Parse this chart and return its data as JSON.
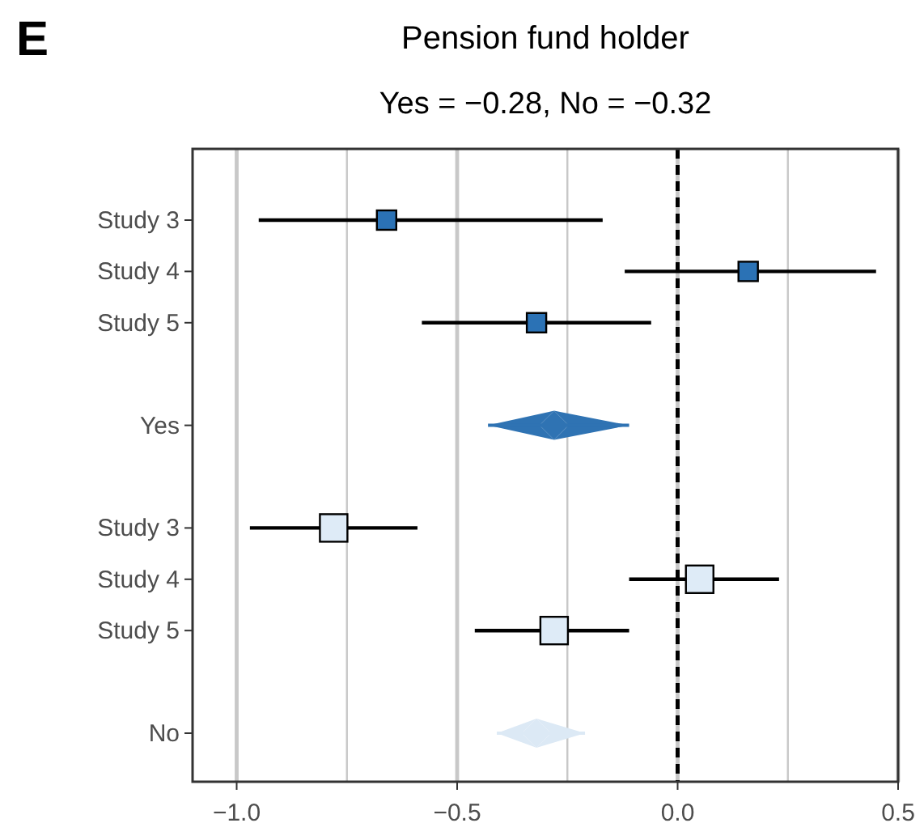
{
  "chart_data": {
    "type": "scatter",
    "orientation": "horizontal",
    "title": "Pension fund holder",
    "subtitle": "Yes = −0.28, No = −0.32",
    "annotations": [
      "E"
    ],
    "categories": [
      "Study 3",
      "Study 4",
      "Study 5",
      null,
      "Yes",
      null,
      "Study 3",
      "Study 4",
      "Study 5",
      null,
      "No"
    ],
    "series": [
      {
        "color": "#2b72b5",
        "marker": "square",
        "values": [
          -0.66,
          0.16,
          -0.32,
          null,
          null,
          null,
          null,
          null,
          null,
          null,
          null
        ],
        "errors": [
          [
            -0.95,
            -0.17
          ],
          [
            -0.12,
            0.45
          ],
          [
            -0.58,
            -0.06
          ],
          null,
          null,
          null,
          null,
          null,
          null,
          null,
          null
        ]
      },
      {
        "color": "#2f73b3",
        "marker": "diamond",
        "values": [
          null,
          null,
          null,
          null,
          -0.28,
          null,
          null,
          null,
          null,
          null,
          null
        ],
        "errors": [
          null,
          null,
          null,
          null,
          [
            -0.43,
            -0.11
          ],
          null,
          null,
          null,
          null,
          null,
          null
        ]
      },
      {
        "color": "#deebf7",
        "marker": "square",
        "values": [
          null,
          null,
          null,
          null,
          null,
          null,
          -0.78,
          0.05,
          -0.28,
          null,
          null
        ],
        "errors": [
          null,
          null,
          null,
          null,
          null,
          null,
          [
            -0.97,
            -0.59
          ],
          [
            -0.11,
            0.23
          ],
          [
            -0.46,
            -0.11
          ],
          null,
          null
        ]
      },
      {
        "color": "#dce9f5",
        "marker": "diamond",
        "values": [
          null,
          null,
          null,
          null,
          null,
          null,
          null,
          null,
          null,
          null,
          -0.32
        ],
        "errors": [
          null,
          null,
          null,
          null,
          null,
          null,
          null,
          null,
          null,
          null,
          [
            -0.41,
            -0.21
          ]
        ]
      }
    ],
    "xlim": [
      -1.1,
      0.5
    ],
    "xticks": [
      {
        "value": -1,
        "label": "−1.0"
      },
      {
        "value": -0.75,
        "label": null
      },
      {
        "value": -0.5,
        "label": "−0.5"
      },
      {
        "value": -0.25,
        "label": null
      },
      {
        "value": 0,
        "label": "0.0"
      },
      {
        "value": 0.25,
        "label": null
      },
      {
        "value": 0.5,
        "label": "0.5"
      }
    ],
    "grid": "x",
    "ref_lines": [
      {
        "axis": "x",
        "value": 0,
        "line_style": "dashed",
        "color": "#000000"
      }
    ]
  }
}
